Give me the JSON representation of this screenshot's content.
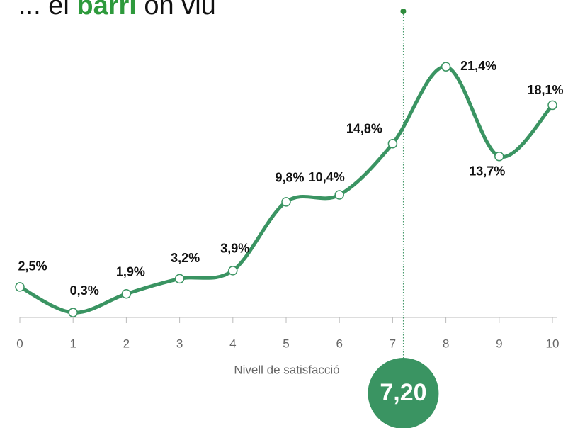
{
  "title_parts": [
    "... el ",
    "barri",
    " on viu"
  ],
  "chart_data": {
    "type": "line",
    "x_label": "Nivell de satisfacció",
    "x": [
      0,
      1,
      2,
      3,
      4,
      5,
      6,
      7,
      8,
      9,
      10
    ],
    "xlim": [
      0,
      10
    ],
    "xticks": [
      0,
      1,
      2,
      3,
      4,
      5,
      6,
      7,
      8,
      9,
      10
    ],
    "ylim": [
      0,
      25
    ],
    "series": [
      {
        "color": "#3a9462",
        "values": [
          2.5,
          0.3,
          1.9,
          3.2,
          3.9,
          9.8,
          10.4,
          14.8,
          21.4,
          13.7,
          18.1
        ],
        "value_labels": [
          "2,5%",
          "0,3%",
          "1,9%",
          "3,2%",
          "3,9%",
          "9,8%",
          "10,4%",
          "14,8%",
          "21,4%",
          "13,7%",
          "18,1%"
        ]
      }
    ],
    "mean": {
      "value": 7.2,
      "label": "7,20"
    }
  }
}
